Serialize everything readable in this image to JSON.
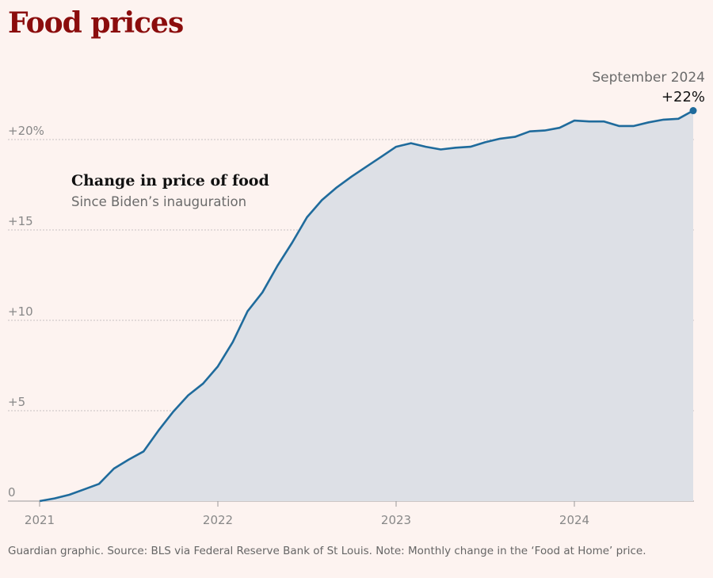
{
  "title": "Food prices",
  "footer": {
    "note": "Guardian graphic. Source: BLS via Federal Reserve Bank of St Louis. Note: Monthly change in the ‘Food at Home’ price."
  },
  "colors": {
    "title": "#8b0d0d",
    "line": "#1f6b9c",
    "area": "#dde0e6",
    "grid": "#c8c2c2",
    "axis_text": "#888888",
    "background": "#fdf3f0"
  },
  "chart_data": {
    "type": "area",
    "series_label": "Change in price of food",
    "subtitle": "Since Biden’s inauguration",
    "x_ticks": [
      "2021",
      "2022",
      "2023",
      "2024"
    ],
    "y_ticks": [
      {
        "value": 0,
        "label": "0"
      },
      {
        "value": 5,
        "label": "+5"
      },
      {
        "value": 10,
        "label": "+10"
      },
      {
        "value": 15,
        "label": "+15"
      },
      {
        "value": 20,
        "label": "+20%"
      }
    ],
    "ylim": [
      0,
      22
    ],
    "xlim": [
      "2021-01",
      "2024-09"
    ],
    "grid": true,
    "annotation": {
      "date_label": "September 2024",
      "value_label": "+22%"
    },
    "series": [
      {
        "x": [
          "2021-01",
          "2021-02",
          "2021-03",
          "2021-04",
          "2021-05",
          "2021-06",
          "2021-07",
          "2021-08",
          "2021-09",
          "2021-10",
          "2021-11",
          "2021-12",
          "2022-01",
          "2022-02",
          "2022-03",
          "2022-04",
          "2022-05",
          "2022-06",
          "2022-07",
          "2022-08",
          "2022-09",
          "2022-10",
          "2022-11",
          "2022-12",
          "2023-01",
          "2023-02",
          "2023-03",
          "2023-04",
          "2023-05",
          "2023-06",
          "2023-07",
          "2023-08",
          "2023-09",
          "2023-10",
          "2023-11",
          "2023-12",
          "2024-01",
          "2024-02",
          "2024-03",
          "2024-04",
          "2024-05",
          "2024-06",
          "2024-07",
          "2024-08",
          "2024-09"
        ],
        "values": [
          0.0,
          0.15,
          0.35,
          0.65,
          0.95,
          1.8,
          2.3,
          2.75,
          3.9,
          4.95,
          5.85,
          6.5,
          7.45,
          8.8,
          10.5,
          11.55,
          13.0,
          14.3,
          15.7,
          16.65,
          17.35,
          17.95,
          18.5,
          19.05,
          19.6,
          19.8,
          19.6,
          19.45,
          19.55,
          19.6,
          19.85,
          20.05,
          20.15,
          20.45,
          20.5,
          20.65,
          21.05,
          21.0,
          21.0,
          20.75,
          20.75,
          20.95,
          21.1,
          21.15,
          21.6
        ]
      }
    ]
  }
}
